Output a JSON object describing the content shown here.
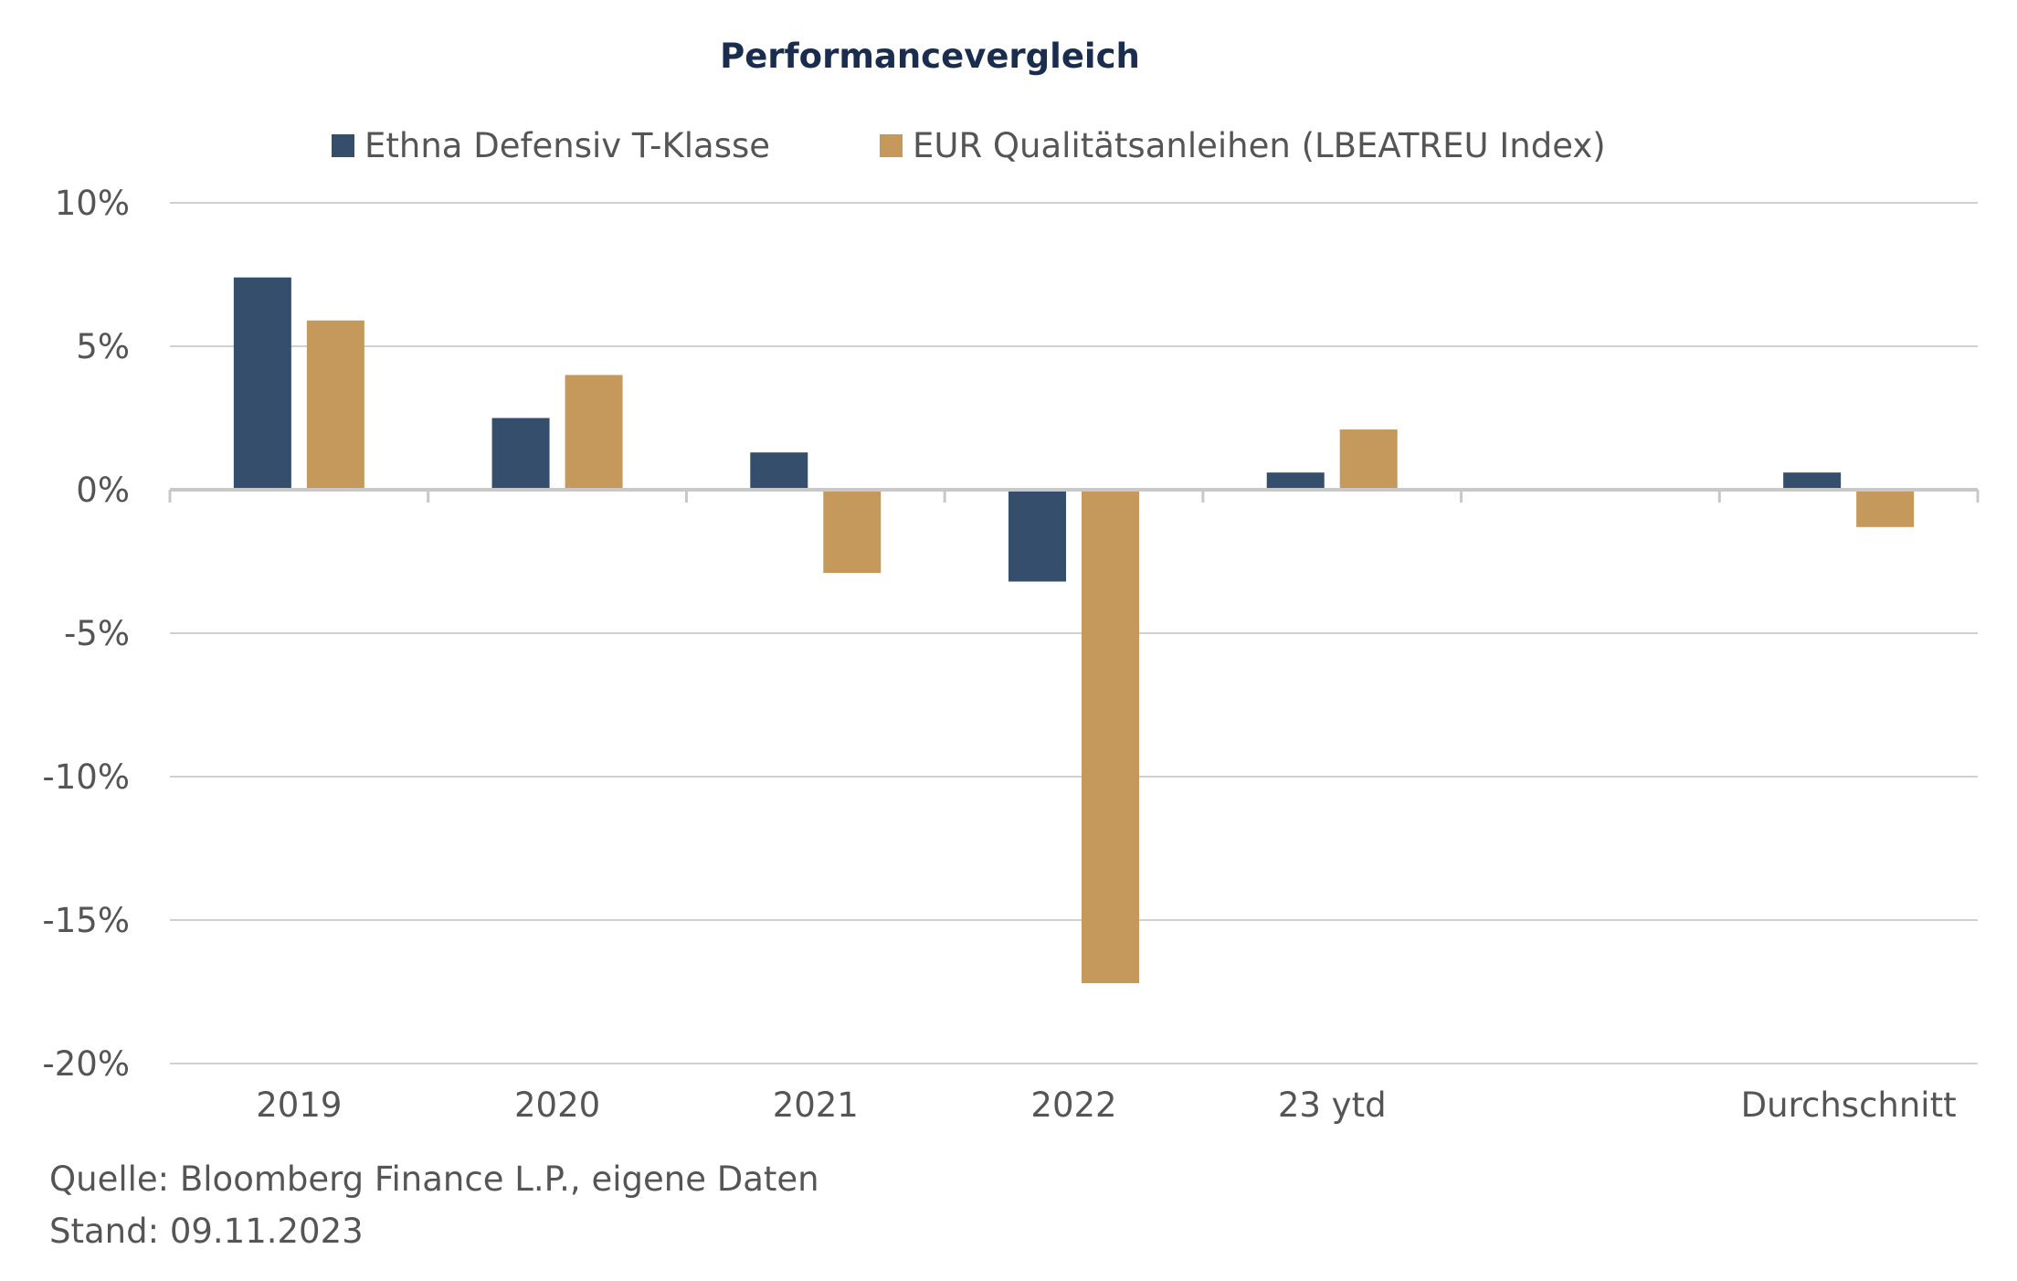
{
  "chart_data": {
    "type": "bar",
    "title": "Performancevergleich",
    "categories": [
      "2019",
      "2020",
      "2021",
      "2022",
      "23 ytd",
      "",
      "Durchschnitt"
    ],
    "series": [
      {
        "name": "Ethna Defensiv T-Klasse",
        "color": "#344e6b",
        "values": [
          7.4,
          2.5,
          1.3,
          -3.2,
          0.6,
          null,
          0.6
        ]
      },
      {
        "name": "EUR Qualitätsanleihen (LBEATREU Index)",
        "color": "#c4995b",
        "values": [
          5.9,
          4.0,
          -2.9,
          -17.2,
          2.1,
          null,
          -1.3
        ]
      }
    ],
    "y_ticks": [
      "10%",
      "5%",
      "0%",
      "-5%",
      "-10%",
      "-15%",
      "-20%"
    ],
    "ylim": [
      -20,
      10
    ],
    "grid": true,
    "legend_position": "top"
  },
  "footer": {
    "source": "Quelle: Bloomberg Finance L.P., eigene Daten",
    "date": "Stand: 09.11.2023"
  }
}
